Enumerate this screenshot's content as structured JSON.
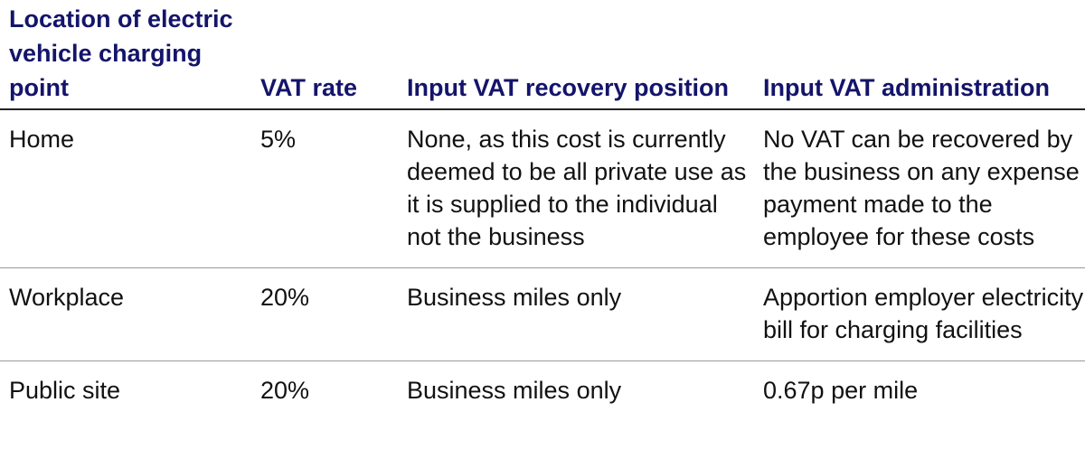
{
  "table": {
    "header": [
      "Location of electric vehicle charging point",
      "VAT rate",
      "Input VAT recovery position",
      "Input VAT administration"
    ],
    "rows": [
      [
        "Home",
        "5%",
        "None, as this cost is currently deemed to be all private use as it is supplied to the individual not the business",
        "No VAT can be recovered by the business on any expense payment made to the employee for these costs"
      ],
      [
        "Workplace",
        "20%",
        "Business miles only",
        "Apportion employer electricity bill for charging facilities"
      ],
      [
        "Public site",
        "20%",
        "Business miles only",
        "0.67p per mile"
      ]
    ]
  }
}
